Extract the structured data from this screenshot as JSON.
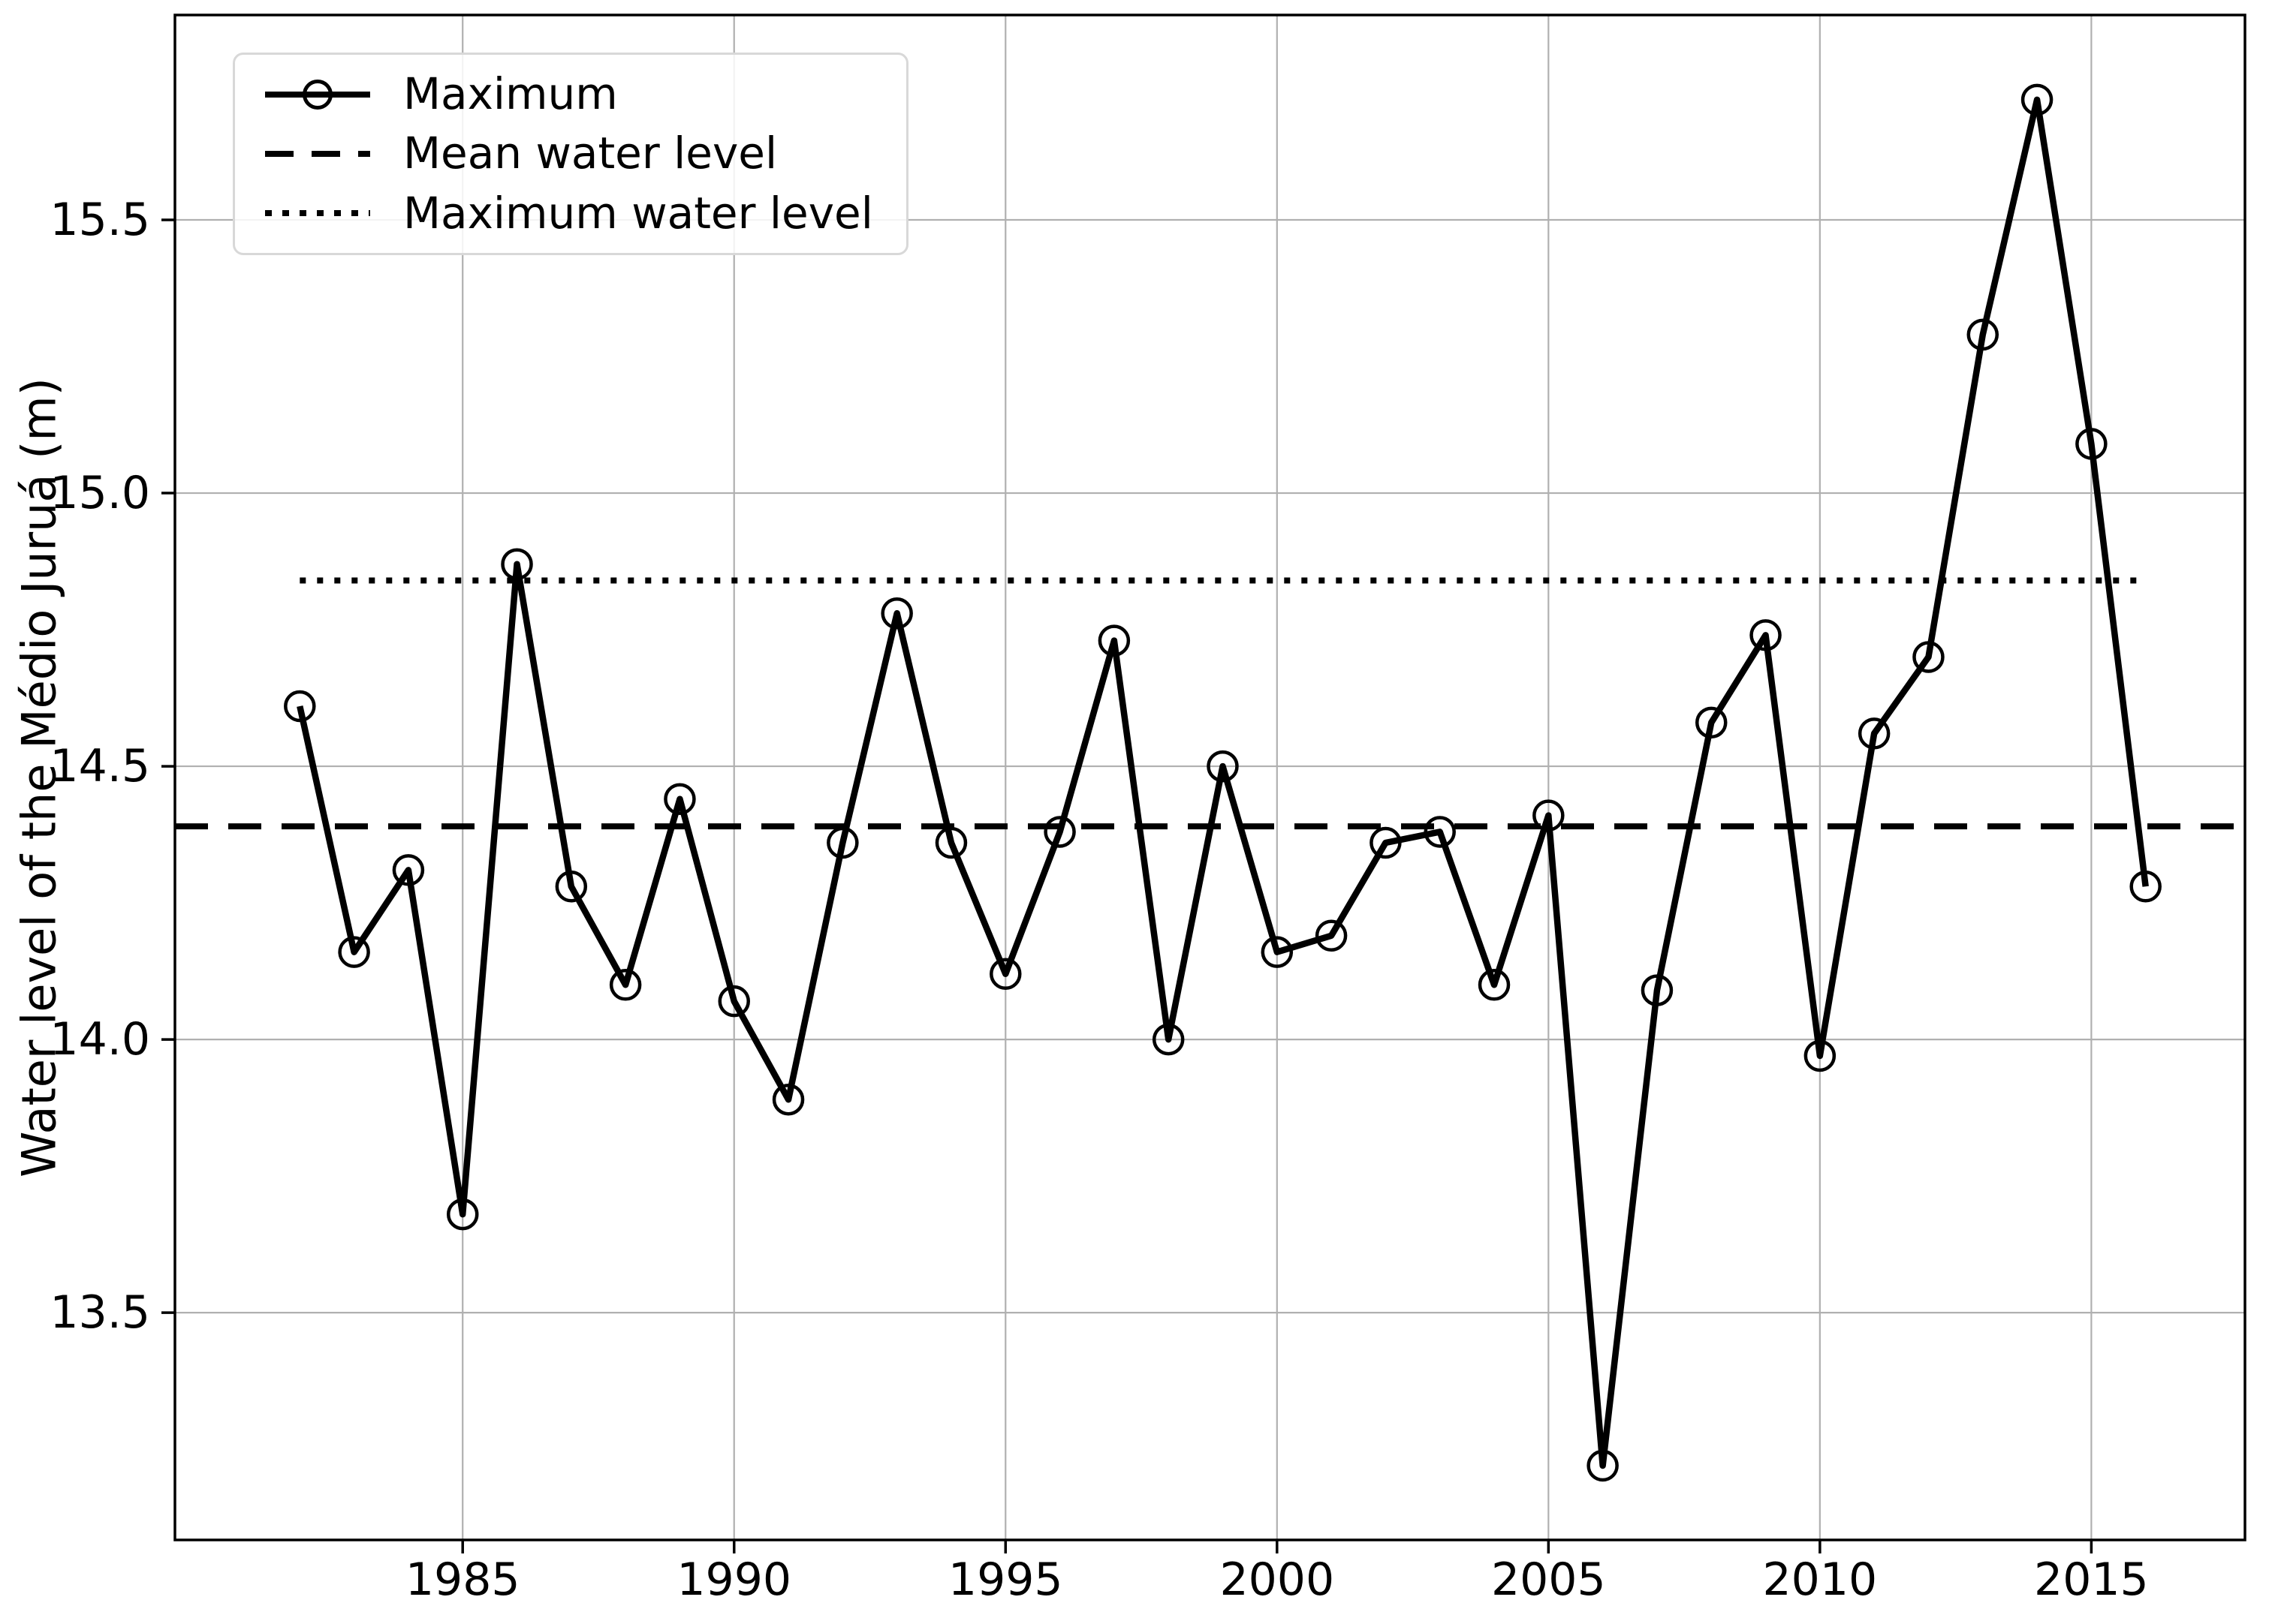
{
  "figure": {
    "background": "#ffffff",
    "ylabel": "Water level of the Médio Juruá (m)"
  },
  "legend": {
    "items": [
      {
        "label": "Maximum",
        "style": "solid-line-circle-marker"
      },
      {
        "label": "Mean water level",
        "style": "dashed"
      },
      {
        "label": "Maximum water level",
        "style": "dotted"
      }
    ]
  },
  "colors": {
    "line": "#000000",
    "grid": "#b0b0b0",
    "legend_border": "#d8d8d8"
  },
  "chart_data": {
    "type": "line",
    "title": "",
    "xlabel": "",
    "ylabel": "Water level of the Médio Juruá (m)",
    "x": [
      1982,
      1983,
      1984,
      1985,
      1986,
      1987,
      1988,
      1989,
      1990,
      1991,
      1992,
      1993,
      1994,
      1995,
      1996,
      1997,
      1998,
      1999,
      2000,
      2001,
      2002,
      2003,
      2004,
      2005,
      2006,
      2007,
      2008,
      2009,
      2010,
      2011,
      2012,
      2013,
      2014,
      2015,
      2016
    ],
    "series": [
      {
        "name": "Maximum",
        "color": "#000000",
        "marker": "open-circle",
        "values": [
          14.61,
          14.16,
          14.31,
          13.68,
          14.87,
          14.28,
          14.1,
          14.44,
          14.07,
          13.89,
          14.36,
          14.78,
          14.36,
          14.12,
          14.38,
          14.73,
          14.0,
          14.5,
          14.16,
          14.19,
          14.36,
          14.38,
          14.1,
          14.41,
          13.22,
          14.09,
          14.58,
          14.74,
          13.97,
          14.56,
          14.7,
          15.29,
          15.72,
          15.09,
          14.28
        ]
      }
    ],
    "reference_lines": [
      {
        "name": "Mean water level",
        "value": 14.39,
        "style": "dashed",
        "color": "#000000",
        "span": "axis"
      },
      {
        "name": "Maximum water level",
        "value": 14.84,
        "style": "dotted",
        "color": "#000000",
        "span": [
          1982,
          2016
        ]
      }
    ],
    "xticks": [
      1985,
      1990,
      1995,
      2000,
      2005,
      2010,
      2015
    ],
    "yticks": [
      "13.5",
      "14.0",
      "14.5",
      "15.0",
      "15.5"
    ],
    "xlim": [
      1979.7,
      2017.83
    ],
    "ylim": [
      13.084,
      15.875
    ],
    "grid": true,
    "grid_color": "#b0b0b0",
    "legend_position": "upper left"
  }
}
